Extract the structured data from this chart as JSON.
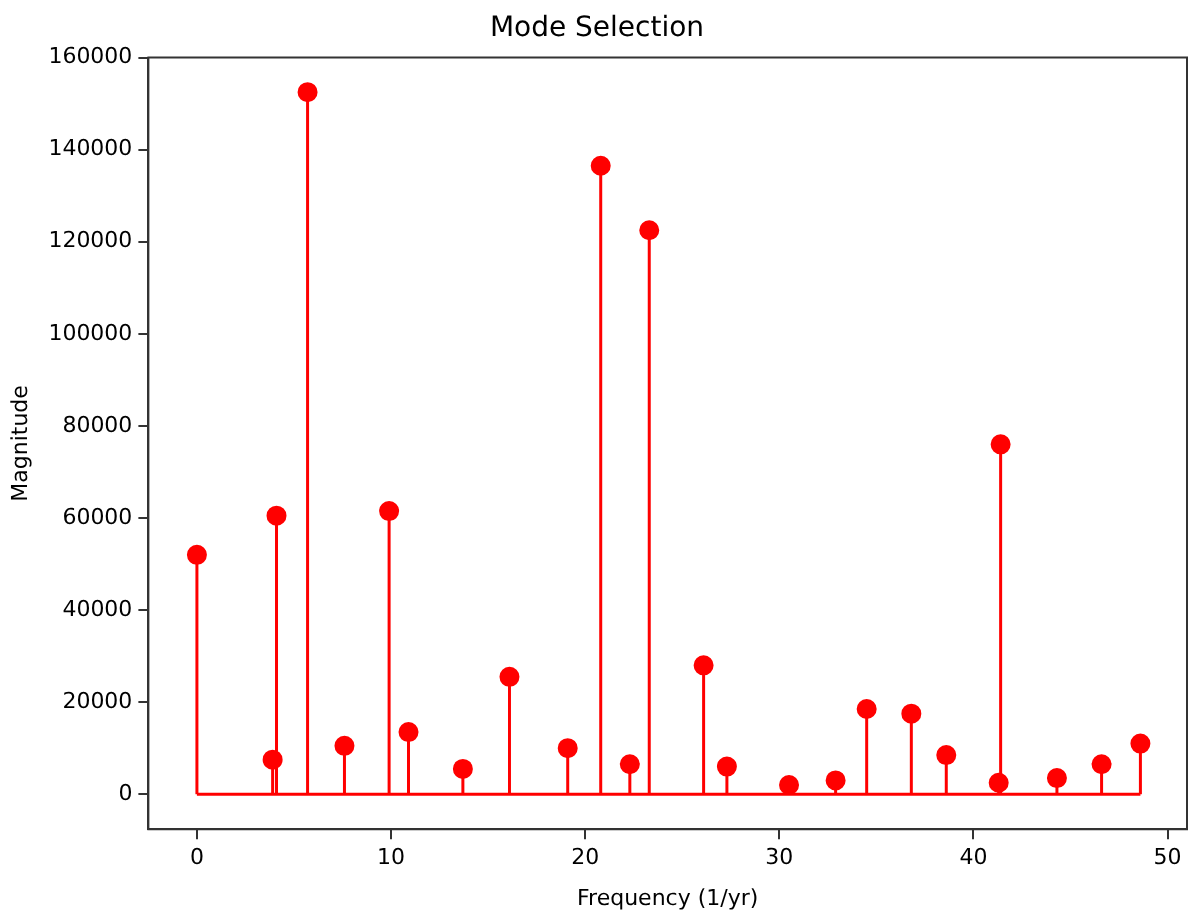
{
  "chart_data": {
    "type": "lollipop",
    "title": "Mode Selection",
    "xlabel": "Frequency (1/yr)",
    "ylabel": "Magnitude",
    "x": [
      0,
      3.9,
      4.1,
      5.7,
      7.6,
      9.9,
      10.9,
      13.7,
      16.1,
      19.1,
      20.8,
      22.3,
      23.3,
      26.1,
      27.3,
      30.5,
      32.9,
      34.5,
      36.8,
      38.6,
      41.3,
      41.4,
      44.3,
      46.6,
      48.6
    ],
    "values": [
      52000,
      7500,
      60500,
      152500,
      10500,
      61500,
      13500,
      5500,
      25500,
      10000,
      136500,
      6500,
      122500,
      28000,
      6000,
      2000,
      3000,
      18500,
      17500,
      8500,
      2500,
      76000,
      3500,
      6500,
      11000
    ],
    "color": "#ff0000",
    "ref_lines": [
      {
        "axis": "y",
        "value": 0,
        "color": "#ff0000"
      }
    ],
    "marker": "circle",
    "grid": false,
    "legend": false,
    "xlim": [
      -2.5,
      51
    ],
    "xticks": [
      0,
      10,
      20,
      30,
      40,
      50
    ],
    "ylim": [
      -7600,
      160000
    ],
    "yticks": [
      0,
      20000,
      40000,
      60000,
      80000,
      100000,
      120000,
      140000,
      160000
    ]
  }
}
